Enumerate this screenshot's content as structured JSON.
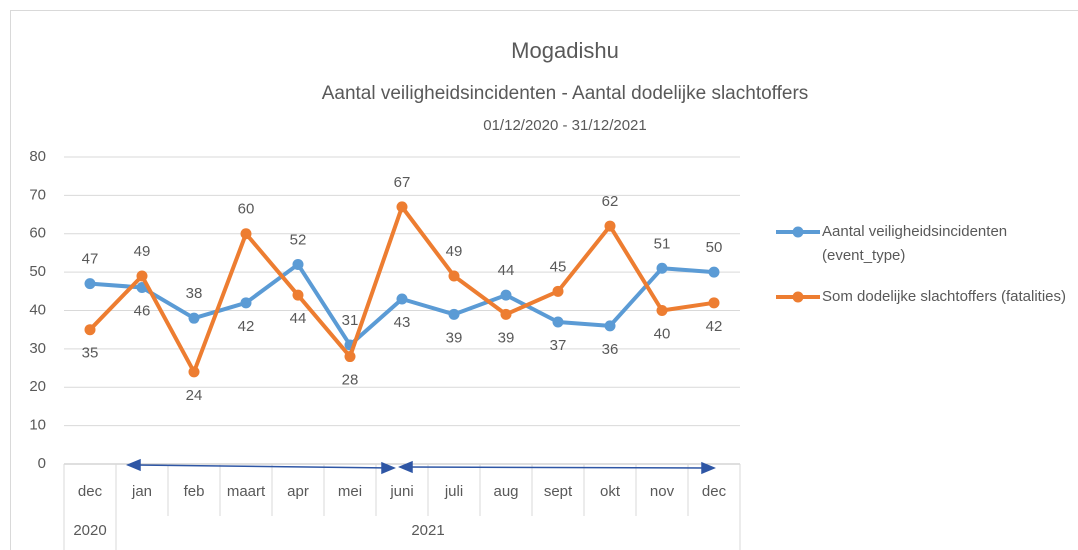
{
  "chart_data": {
    "type": "line",
    "title": "Mogadishu",
    "subtitle": "Aantal veiligheidsincidenten - Aantal dodelijke slachtoffers",
    "date_range": "01/12/2020 - 31/12/2021",
    "categories": [
      "dec",
      "jan",
      "feb",
      "maart",
      "apr",
      "mei",
      "juni",
      "juli",
      "aug",
      "sept",
      "okt",
      "nov",
      "dec"
    ],
    "groups": [
      {
        "label": "2020",
        "count": 1
      },
      {
        "label": "2021",
        "count": 12
      }
    ],
    "series": [
      {
        "name": "Aantal veiligheidsincidenten (event_type)",
        "color": "#5b9bd5",
        "values": [
          47,
          46,
          38,
          42,
          52,
          31,
          43,
          39,
          44,
          37,
          36,
          51,
          50
        ]
      },
      {
        "name": "Som dodelijke slachtoffers (fatalities)",
        "color": "#ed7d31",
        "values": [
          35,
          49,
          24,
          60,
          44,
          28,
          67,
          49,
          39,
          45,
          62,
          40,
          42
        ]
      }
    ],
    "ylim": [
      0,
      80
    ],
    "yticks": [
      0,
      10,
      20,
      30,
      40,
      50,
      60,
      70,
      80
    ],
    "grid": true,
    "legend": "right",
    "data_labels": true
  }
}
